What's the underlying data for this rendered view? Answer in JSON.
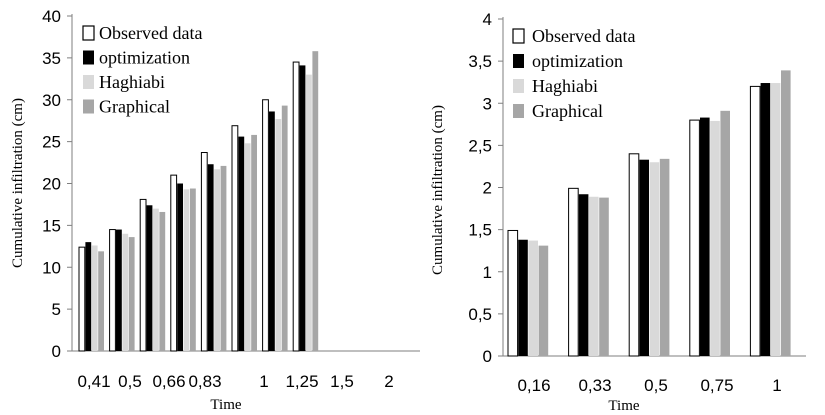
{
  "chart_data": [
    {
      "type": "bar",
      "xlabel": "Time",
      "ylabel": "Cumulative infiltration (cm)",
      "ylim": [
        0,
        40
      ],
      "yticks": [
        "0",
        "5",
        "10",
        "15",
        "20",
        "25",
        "30",
        "35",
        "40"
      ],
      "categories": [
        "0,41",
        "0,5",
        "0,66",
        "0,83",
        "1",
        "1,25",
        "1,5",
        "2"
      ],
      "legend_position": "top-left",
      "grid": false,
      "series": [
        {
          "name": "Observed data",
          "color": "#ffffff",
          "values": [
            12.4,
            14.5,
            18.1,
            21.0,
            23.7,
            26.9,
            30.0,
            34.5
          ]
        },
        {
          "name": "optimization",
          "color": "#000000",
          "values": [
            13.0,
            14.5,
            17.4,
            20.0,
            22.3,
            25.6,
            28.6,
            34.1
          ]
        },
        {
          "name": "Haghiabi",
          "color": "#d9d9d9",
          "values": [
            12.6,
            14.0,
            17.0,
            19.3,
            21.7,
            24.8,
            27.7,
            33.0
          ]
        },
        {
          "name": "Graphical",
          "color": "#a6a6a6",
          "values": [
            11.9,
            13.6,
            16.6,
            19.4,
            22.1,
            25.8,
            29.3,
            35.8
          ]
        }
      ]
    },
    {
      "type": "bar",
      "xlabel": "Time",
      "ylabel": "Cumulative infiltration (cm)",
      "ylim": [
        0,
        4
      ],
      "yticks": [
        "0",
        "0,5",
        "1",
        "1,5",
        "2",
        "2,5",
        "3",
        "3,5",
        "4"
      ],
      "categories": [
        "0,16",
        "0,33",
        "0,5",
        "0,75",
        "1"
      ],
      "legend_position": "top-left",
      "grid": false,
      "series": [
        {
          "name": "Observed data",
          "color": "#ffffff",
          "values": [
            1.49,
            1.99,
            2.4,
            2.8,
            3.2
          ]
        },
        {
          "name": "optimization",
          "color": "#000000",
          "values": [
            1.38,
            1.92,
            2.33,
            2.83,
            3.24
          ]
        },
        {
          "name": "Haghiabi",
          "color": "#d9d9d9",
          "values": [
            1.37,
            1.89,
            2.3,
            2.79,
            3.24
          ]
        },
        {
          "name": "Graphical",
          "color": "#a6a6a6",
          "values": [
            1.31,
            1.88,
            2.34,
            2.91,
            3.39
          ]
        }
      ]
    }
  ]
}
